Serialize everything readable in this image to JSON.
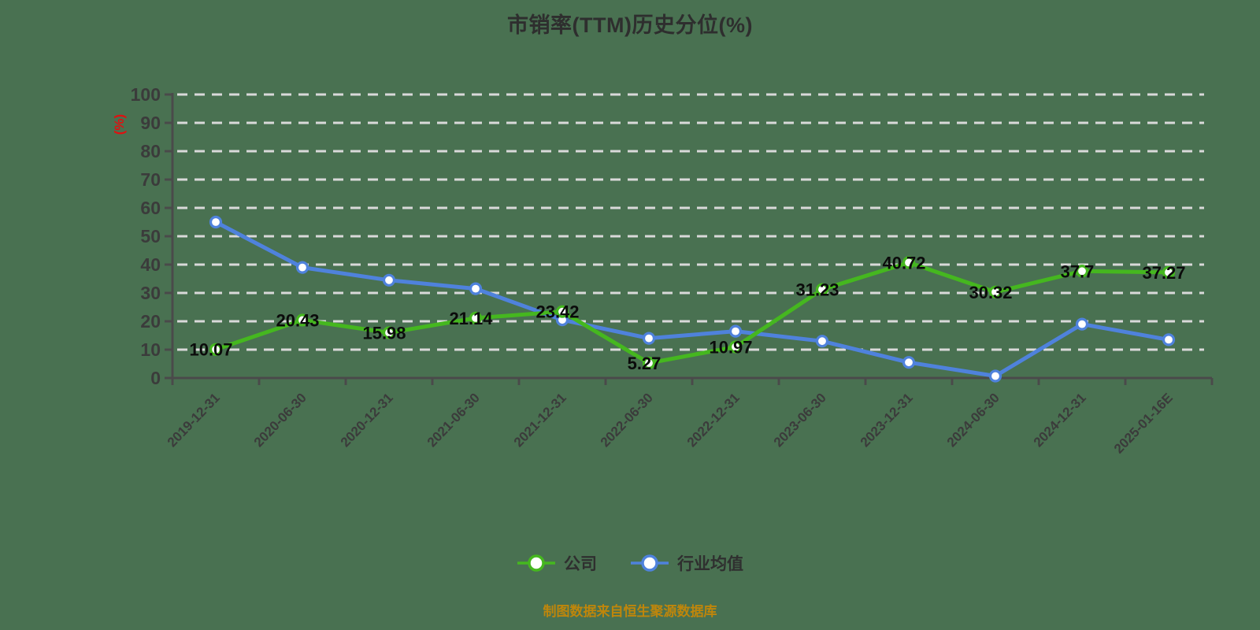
{
  "chart_data": {
    "type": "line",
    "title": "市销率(TTM)历史分位(%)",
    "ylabel": "(%)",
    "xlabel": "",
    "ylim": [
      0,
      100
    ],
    "y_tick_step": 10,
    "grid": true,
    "grid_style": "dashed",
    "legend_position": "bottom",
    "categories": [
      "2019-12-31",
      "2020-06-30",
      "2020-12-31",
      "2021-06-30",
      "2021-12-31",
      "2022-06-30",
      "2022-12-31",
      "2023-06-30",
      "2023-12-31",
      "2024-06-30",
      "2024-12-31",
      "2025-01-16E"
    ],
    "series": [
      {
        "name": "行业均值",
        "color": "#4f82dc",
        "show_point_labels": false,
        "values": [
          55.0,
          39.0,
          34.5,
          31.5,
          20.5,
          14.0,
          16.5,
          13.0,
          5.5,
          0.7,
          19.0,
          13.5
        ]
      },
      {
        "name": "公司",
        "color": "#45b71f",
        "show_point_labels": true,
        "values": [
          10.07,
          20.43,
          15.98,
          21.14,
          23.42,
          5.27,
          10.97,
          31.23,
          40.72,
          30.32,
          37.7,
          37.27
        ],
        "point_labels": [
          "10.07",
          "20.43",
          "15.98",
          "21.14",
          "23.42",
          "5.27",
          "10.97",
          "31.23",
          "40.72",
          "30.32",
          "37.7",
          "37.27"
        ]
      }
    ],
    "legend_order": [
      "公司",
      "行业均值"
    ],
    "source_note": "制图数据来自恒生聚源数据库"
  },
  "colors": {
    "background": "#497151",
    "title": "#2e2e2e",
    "axis": "#4a4a4a",
    "grid": "#d9d9d9",
    "tick_label": "#3b3b3b",
    "ylabel": "#e01010",
    "point_label": "#0b0b0b",
    "legend_text": "#2f2f2f",
    "source_note": "#bf860b",
    "marker_fill": "#ffffff"
  }
}
